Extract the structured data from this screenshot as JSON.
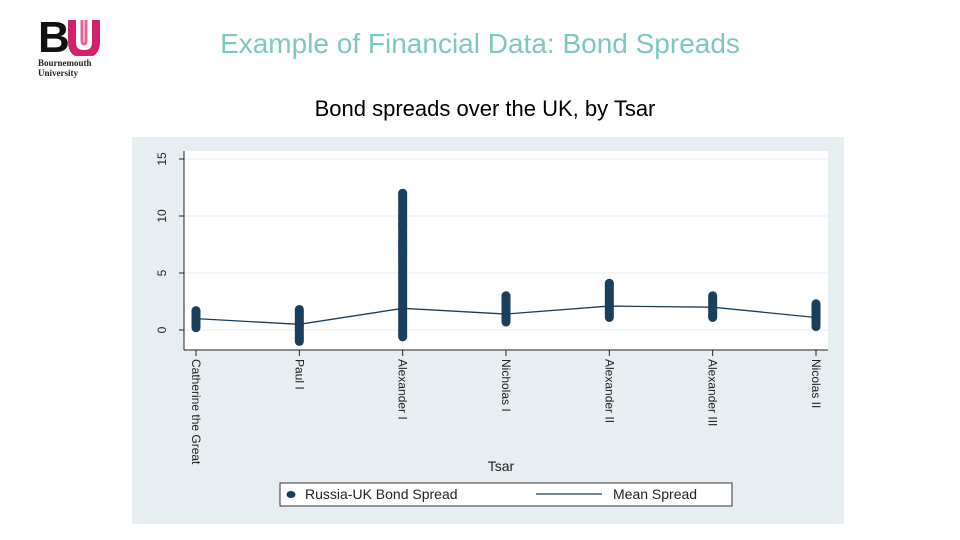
{
  "slide": {
    "title": "Example of Financial Data: Bond Spreads",
    "logo": {
      "mark": "BU",
      "line1": "Bournemouth",
      "line2": "University"
    }
  },
  "colors": {
    "title": "#7ec8c0",
    "panel": "#e6eef2",
    "series": "#1a3f5c",
    "logo_b": "#111111",
    "logo_u": "#d21f6e"
  },
  "chart_data": {
    "type": "scatter",
    "title": "Bond spreads over the UK, by Tsar",
    "xlabel": "Tsar",
    "ylabel": "",
    "ylim": [
      0,
      15
    ],
    "yticks": [
      0,
      5,
      10,
      15
    ],
    "grid": true,
    "legend_placement": "bottom",
    "categories": [
      "Catherine the Great",
      "Paul I",
      "Alexander I",
      "Nicholas I",
      "Alexander II",
      "Alexander III",
      "Nicolas II"
    ],
    "series": [
      {
        "name": "Russia-UK Bond Spread",
        "kind": "scatter",
        "ranges": [
          [
            0.2,
            1.7
          ],
          [
            -1.0,
            1.8
          ],
          [
            -0.6,
            12.0
          ],
          [
            0.7,
            3.0
          ],
          [
            1.1,
            4.1
          ],
          [
            1.1,
            3.0
          ],
          [
            0.3,
            2.3
          ]
        ],
        "outliers": [
          [],
          [],
          [
            12.0,
            9.8,
            9.2,
            7.8,
            7.4,
            7.0,
            6.6,
            6.2
          ],
          [
            3.0
          ],
          [
            4.1
          ],
          [],
          []
        ]
      },
      {
        "name": "Mean Spread",
        "kind": "line",
        "values": [
          1.0,
          0.5,
          1.9,
          1.4,
          2.1,
          2.0,
          1.1
        ]
      }
    ]
  }
}
